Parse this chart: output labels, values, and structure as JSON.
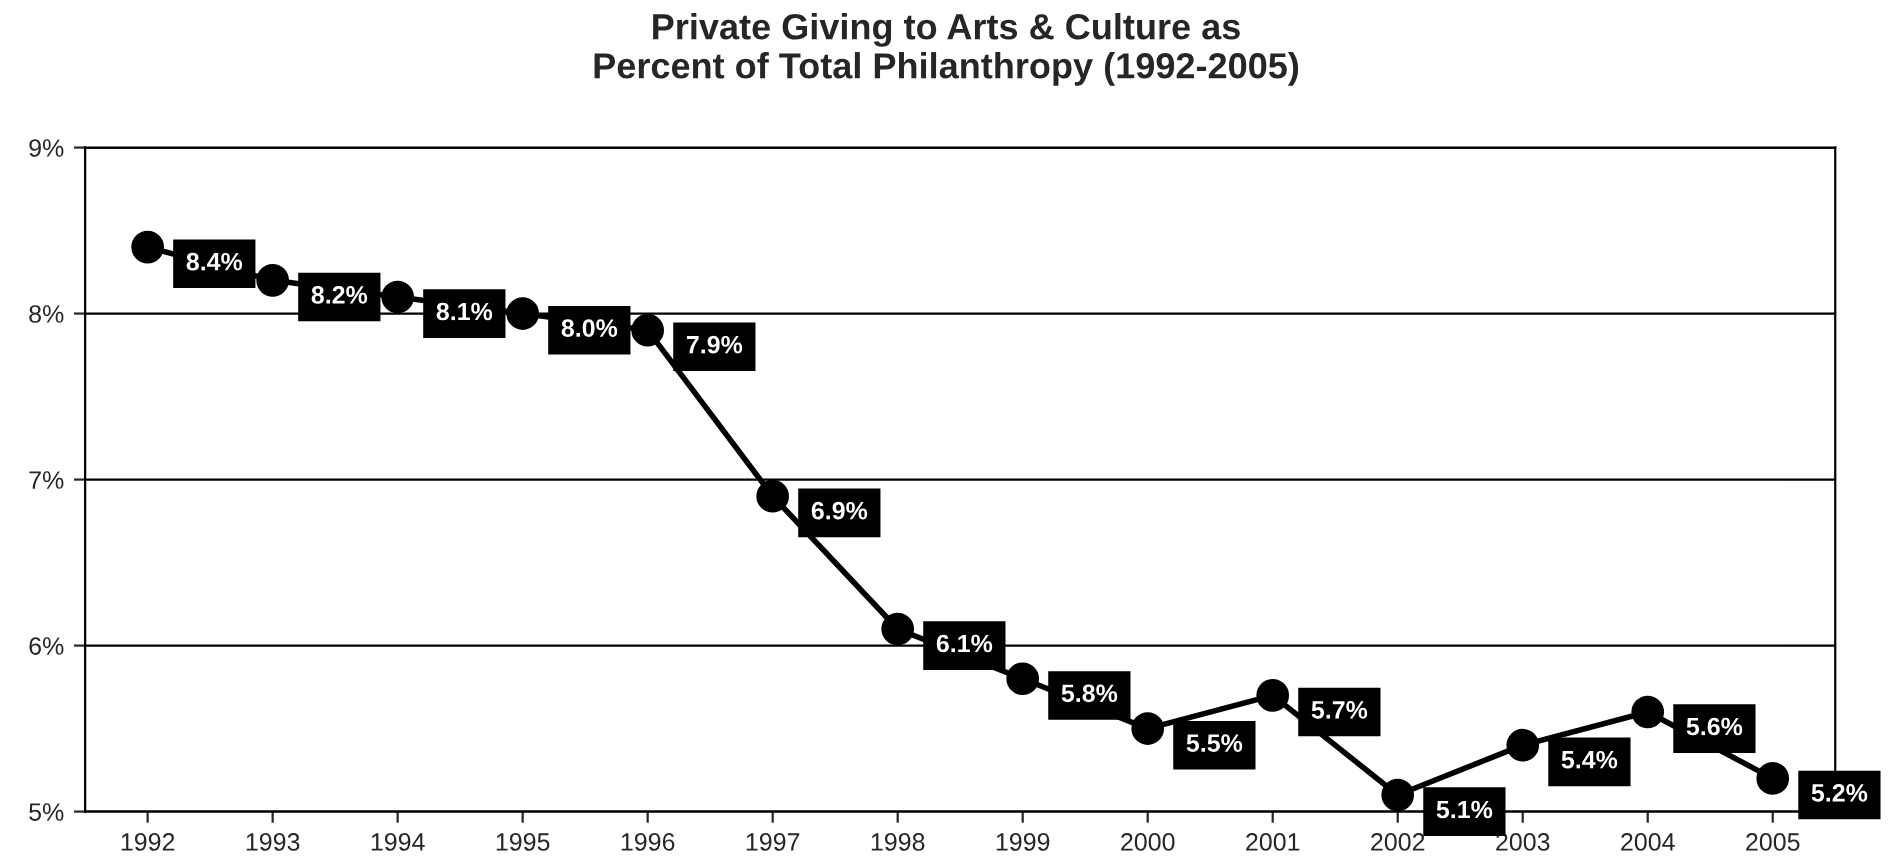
{
  "chart_data": {
    "type": "line",
    "title": "Private Giving to Arts & Culture as\nPercent of Total Philanthropy (1992-2005)",
    "categories": [
      "1992",
      "1993",
      "1994",
      "1995",
      "1996",
      "1997",
      "1998",
      "1999",
      "2000",
      "2001",
      "2002",
      "2003",
      "2004",
      "2005"
    ],
    "series": [
      {
        "color": "#000000",
        "values": [
          8.4,
          8.2,
          8.1,
          8.0,
          7.9,
          6.9,
          6.1,
          5.8,
          5.5,
          5.7,
          5.1,
          5.4,
          5.6,
          5.2
        ],
        "value_labels": [
          "8.4%",
          "8.2%",
          "8.1%",
          "8.0%",
          "7.9%",
          "6.9%",
          "6.1%",
          "5.8%",
          "5.5%",
          "5.7%",
          "5.1%",
          "5.4%",
          "5.6%",
          "5.2%"
        ]
      }
    ],
    "ylim": [
      5,
      9
    ],
    "yticks": [
      {
        "value": 5,
        "label": "5%"
      },
      {
        "value": 6,
        "label": "6%"
      },
      {
        "value": 7,
        "label": "7%"
      },
      {
        "value": 8,
        "label": "8%"
      },
      {
        "value": 9,
        "label": "9%"
      }
    ],
    "grid": "y",
    "marker": "circle",
    "line_style": "solid",
    "legend": false
  }
}
